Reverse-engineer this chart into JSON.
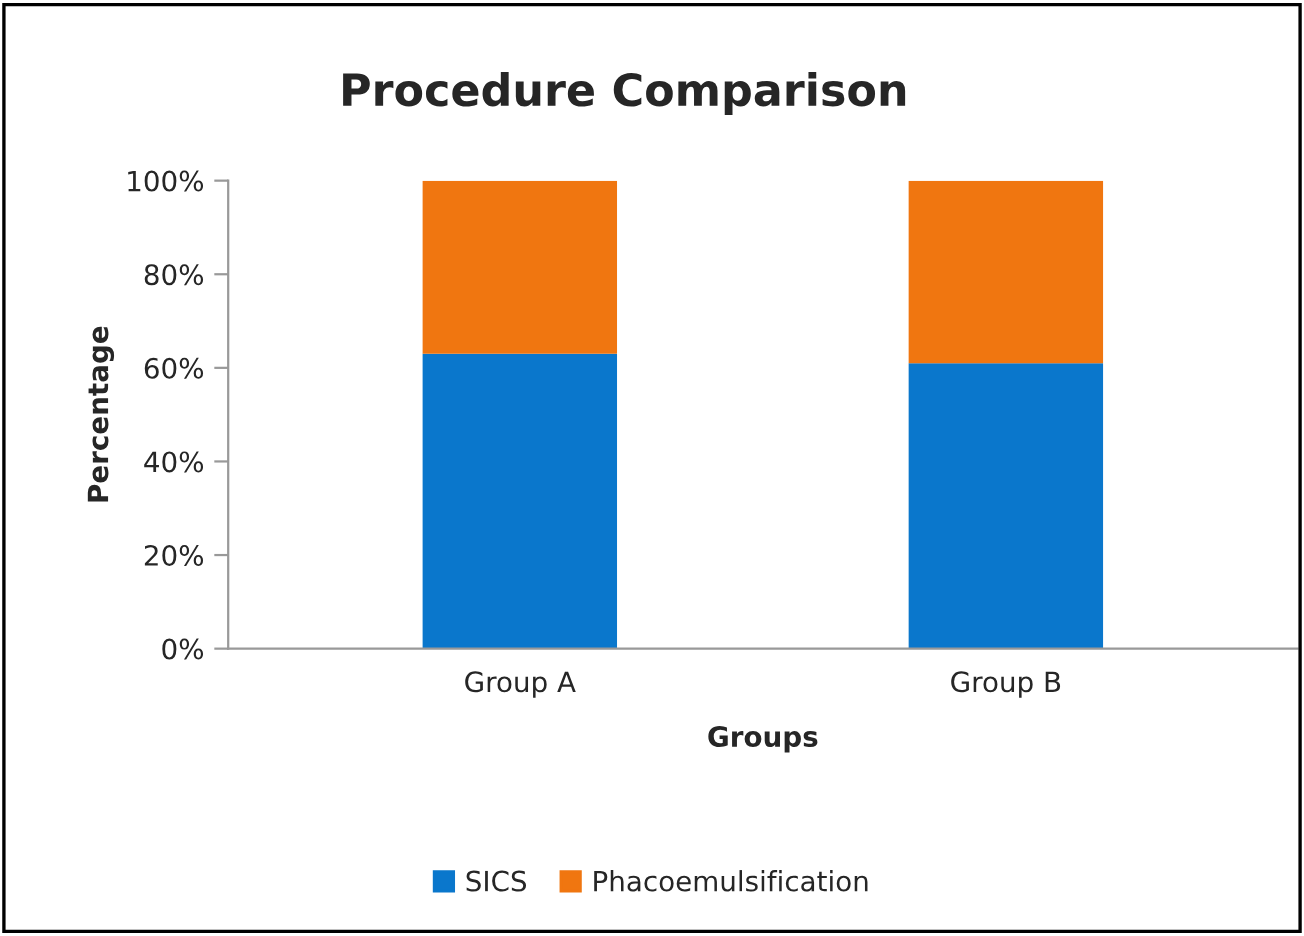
{
  "chart_data": {
    "type": "bar",
    "title": "Procedure Comparison",
    "xlabel": "Groups",
    "ylabel": "Percentage",
    "categories": [
      "Group A",
      "Group B"
    ],
    "stacked": true,
    "series": [
      {
        "name": "SICS",
        "color": "#0a77cc",
        "values": [
          63,
          61
        ]
      },
      {
        "name": "Phacoemulsification",
        "color": "#f07610",
        "values": [
          37,
          39
        ]
      }
    ],
    "ylim": [
      0,
      100
    ],
    "yticks": [
      {
        "value": 0,
        "label": "0%"
      },
      {
        "value": 20,
        "label": "20%"
      },
      {
        "value": 40,
        "label": "40%"
      },
      {
        "value": 60,
        "label": "60%"
      },
      {
        "value": 80,
        "label": "80%"
      },
      {
        "value": 100,
        "label": "100%"
      }
    ],
    "legend": "bottom",
    "grid": false
  }
}
